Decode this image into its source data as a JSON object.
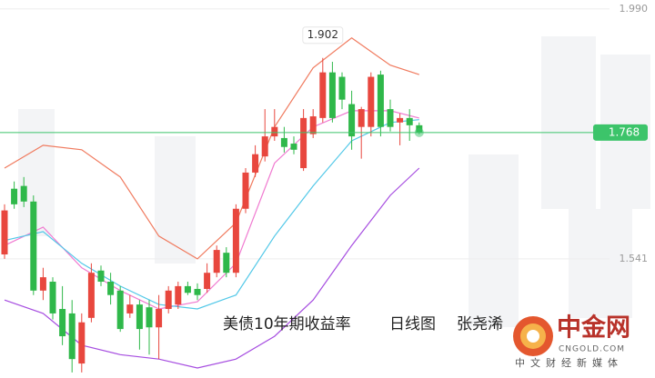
{
  "chart_data": {
    "type": "candlestick",
    "caption": [
      "美债10年期收益率",
      "日线图",
      "张尧浠"
    ],
    "watermark": {
      "name": "中金网",
      "site": "CNGOLD.COM",
      "slogan": "中文财经新媒体"
    },
    "up_color": "#e8473e",
    "down_color": "#2fb84a",
    "ylim": [
      1.327,
      2.006
    ],
    "yticks": [
      {
        "value": 1.99,
        "label": "1.990"
      },
      1.541
    ],
    "last_price": 1.768,
    "last_price_color": "#3cc46a",
    "high_annotation": 1.902,
    "open": [
      1.549,
      1.667,
      1.672,
      1.644,
      1.484,
      1.5,
      1.451,
      1.443,
      1.353,
      1.435,
      1.52,
      1.5,
      1.484,
      1.443,
      1.459,
      1.454,
      1.418,
      1.451,
      1.459,
      1.492,
      1.487,
      1.487,
      1.516,
      1.552,
      1.516,
      1.631,
      1.696,
      1.725,
      1.761,
      1.758,
      1.748,
      1.704,
      1.765,
      1.794,
      1.876,
      1.868,
      1.819,
      1.778,
      1.778,
      1.872,
      1.81,
      1.786,
      1.794,
      1.781
    ],
    "high": [
      1.639,
      1.68,
      1.688,
      1.655,
      1.525,
      1.508,
      1.492,
      1.467,
      1.443,
      1.533,
      1.529,
      1.516,
      1.492,
      1.476,
      1.467,
      1.467,
      1.476,
      1.492,
      1.5,
      1.5,
      1.497,
      1.533,
      1.565,
      1.562,
      1.639,
      1.704,
      1.745,
      1.81,
      1.81,
      1.778,
      1.761,
      1.81,
      1.81,
      1.902,
      1.895,
      1.876,
      1.843,
      1.814,
      1.876,
      1.879,
      1.827,
      1.802,
      1.81,
      1.786
    ],
    "low": [
      1.541,
      1.631,
      1.634,
      1.476,
      1.467,
      1.432,
      1.386,
      1.337,
      1.337,
      1.427,
      1.492,
      1.459,
      1.41,
      1.435,
      1.378,
      1.369,
      1.361,
      1.443,
      1.451,
      1.476,
      1.467,
      1.48,
      1.508,
      1.508,
      1.508,
      1.623,
      1.688,
      1.716,
      1.753,
      1.732,
      1.729,
      1.699,
      1.758,
      1.786,
      1.786,
      1.81,
      1.737,
      1.721,
      1.761,
      1.761,
      1.77,
      1.745,
      1.753,
      1.765
    ],
    "close": [
      1.628,
      1.639,
      1.644,
      1.484,
      1.508,
      1.443,
      1.402,
      1.361,
      1.427,
      1.516,
      1.5,
      1.476,
      1.415,
      1.459,
      1.415,
      1.418,
      1.451,
      1.484,
      1.492,
      1.48,
      1.476,
      1.516,
      1.557,
      1.516,
      1.631,
      1.696,
      1.729,
      1.761,
      1.778,
      1.742,
      1.737,
      1.794,
      1.797,
      1.876,
      1.794,
      1.827,
      1.761,
      1.81,
      1.868,
      1.778,
      1.778,
      1.794,
      1.781,
      1.768
    ],
    "lines": [
      {
        "color": "#f07a5e",
        "x": [
          0,
          4,
          8,
          12,
          16,
          20,
          24,
          28,
          32,
          36,
          40,
          43
        ],
        "values": [
          1.704,
          1.745,
          1.737,
          1.688,
          1.582,
          1.541,
          1.606,
          1.778,
          1.884,
          1.938,
          1.889,
          1.872
        ]
      },
      {
        "color": "#f07ad0",
        "x": [
          0,
          4,
          8,
          12,
          16,
          20,
          24,
          28,
          32,
          36,
          40,
          43
        ],
        "values": [
          1.565,
          1.598,
          1.525,
          1.484,
          1.451,
          1.464,
          1.533,
          1.713,
          1.778,
          1.807,
          1.807,
          1.794
        ]
      },
      {
        "color": "#52c8e8",
        "x": [
          0,
          4,
          8,
          12,
          16,
          20,
          24,
          28,
          32,
          36,
          40,
          43
        ],
        "values": [
          1.574,
          1.59,
          1.533,
          1.492,
          1.459,
          1.451,
          1.476,
          1.582,
          1.672,
          1.753,
          1.786,
          1.791
        ]
      },
      {
        "color": "#a64de0",
        "x": [
          0,
          4,
          8,
          12,
          16,
          20,
          24,
          28,
          32,
          36,
          40,
          43
        ],
        "values": [
          1.467,
          1.443,
          1.386,
          1.369,
          1.361,
          1.345,
          1.361,
          1.402,
          1.467,
          1.565,
          1.655,
          1.704
        ]
      }
    ]
  }
}
